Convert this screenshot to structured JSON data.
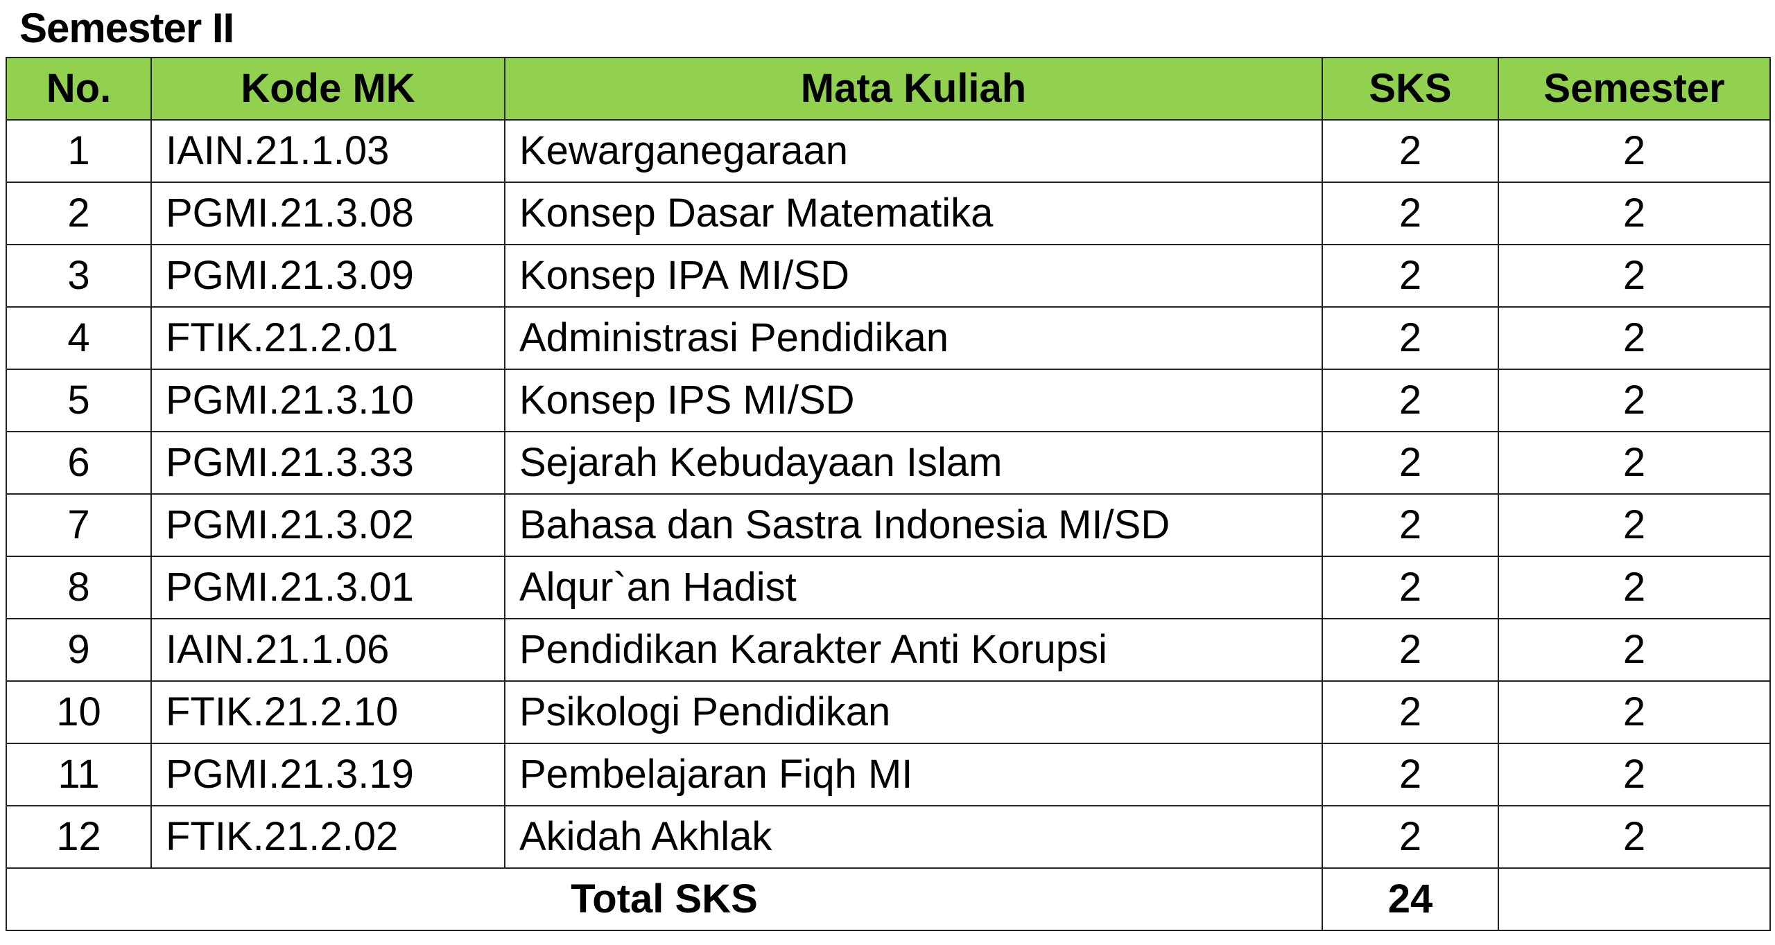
{
  "title": "Semester II",
  "header_color": "#92d050",
  "columns": [
    "No.",
    "Kode MK",
    "Mata Kuliah",
    "SKS",
    "Semester"
  ],
  "rows": [
    [
      "1",
      "IAIN.21.1.03",
      "Kewarganegaraan",
      "2",
      "2"
    ],
    [
      "2",
      "PGMI.21.3.08",
      "Konsep Dasar Matematika",
      "2",
      "2"
    ],
    [
      "3",
      "PGMI.21.3.09",
      "Konsep IPA MI/SD",
      "2",
      "2"
    ],
    [
      "4",
      "FTIK.21.2.01",
      "Administrasi Pendidikan",
      "2",
      "2"
    ],
    [
      "5",
      "PGMI.21.3.10",
      "Konsep IPS MI/SD",
      "2",
      "2"
    ],
    [
      "6",
      "PGMI.21.3.33",
      "Sejarah Kebudayaan Islam",
      "2",
      "2"
    ],
    [
      "7",
      "PGMI.21.3.02",
      "Bahasa dan Sastra Indonesia MI/SD",
      "2",
      "2"
    ],
    [
      "8",
      "PGMI.21.3.01",
      "Alqur`an Hadist",
      "2",
      "2"
    ],
    [
      "9",
      "IAIN.21.1.06",
      "Pendidikan Karakter Anti Korupsi",
      "2",
      "2"
    ],
    [
      "10",
      "FTIK.21.2.10",
      "Psikologi Pendidikan",
      "2",
      "2"
    ],
    [
      "11",
      "PGMI.21.3.19",
      "Pembelajaran Fiqh MI",
      "2",
      "2"
    ],
    [
      "12",
      "FTIK.21.2.02",
      "Akidah Akhlak",
      "2",
      "2"
    ]
  ],
  "total": {
    "label": "Total SKS",
    "value": "24",
    "semester": ""
  }
}
